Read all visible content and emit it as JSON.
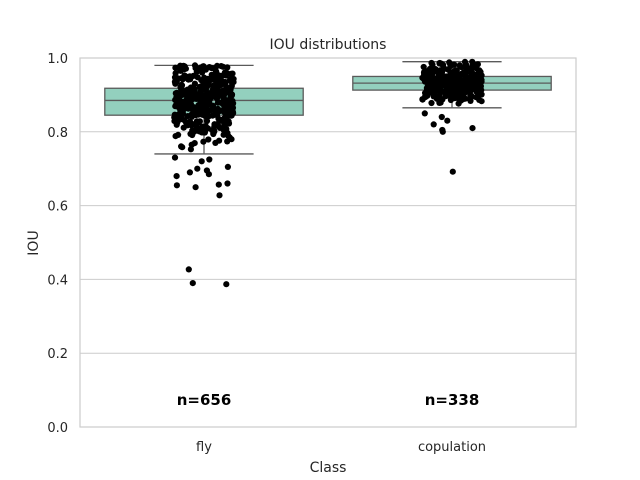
{
  "chart_data": {
    "type": "box",
    "title": "IOU distributions",
    "xlabel": "Class",
    "ylabel": "IOU",
    "ylim": [
      0.0,
      1.0
    ],
    "yticks": [
      "0.0",
      "0.2",
      "0.4",
      "0.6",
      "0.8",
      "1.0"
    ],
    "grid": true,
    "box_color": "#93d0be",
    "point_color": "#000000",
    "categories": [
      "fly",
      "copulation"
    ],
    "boxes": [
      {
        "category": "fly",
        "whisker_low": 0.74,
        "q1": 0.845,
        "median": 0.885,
        "q3": 0.918,
        "whisker_high": 0.98,
        "count_label": "n=656",
        "outliers": [
          0.387,
          0.39,
          0.427,
          0.628,
          0.65,
          0.655,
          0.657,
          0.66,
          0.68,
          0.685,
          0.69,
          0.695,
          0.7,
          0.705,
          0.72,
          0.725,
          0.73
        ]
      },
      {
        "category": "copulation",
        "whisker_low": 0.865,
        "q1": 0.913,
        "median": 0.932,
        "q3": 0.95,
        "whisker_high": 0.99,
        "count_label": "n=338",
        "outliers": [
          0.692,
          0.8,
          0.805,
          0.81,
          0.82,
          0.83,
          0.84,
          0.85
        ]
      }
    ]
  }
}
